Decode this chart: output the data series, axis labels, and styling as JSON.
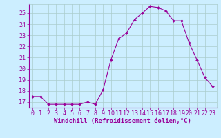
{
  "x": [
    0,
    1,
    2,
    3,
    4,
    5,
    6,
    7,
    8,
    9,
    10,
    11,
    12,
    13,
    14,
    15,
    16,
    17,
    18,
    19,
    20,
    21,
    22,
    23
  ],
  "y": [
    17.5,
    17.5,
    16.8,
    16.8,
    16.8,
    16.8,
    16.8,
    17.0,
    16.8,
    18.1,
    20.8,
    22.7,
    23.2,
    24.4,
    25.0,
    25.6,
    25.5,
    25.2,
    24.3,
    24.3,
    22.3,
    20.8,
    19.2,
    18.4
  ],
  "line_color": "#990099",
  "marker": "D",
  "marker_size": 2.0,
  "bg_color": "#cceeff",
  "grid_color": "#aacccc",
  "tick_color": "#990099",
  "label_color": "#990099",
  "xlabel": "Windchill (Refroidissement éolien,°C)",
  "xlim": [
    -0.5,
    23.5
  ],
  "ylim": [
    16.5,
    25.8
  ],
  "yticks": [
    17,
    18,
    19,
    20,
    21,
    22,
    23,
    24,
    25
  ],
  "xticks": [
    0,
    1,
    2,
    3,
    4,
    5,
    6,
    7,
    8,
    9,
    10,
    11,
    12,
    13,
    14,
    15,
    16,
    17,
    18,
    19,
    20,
    21,
    22,
    23
  ],
  "font_size": 6.0,
  "xlabel_fontsize": 6.5
}
